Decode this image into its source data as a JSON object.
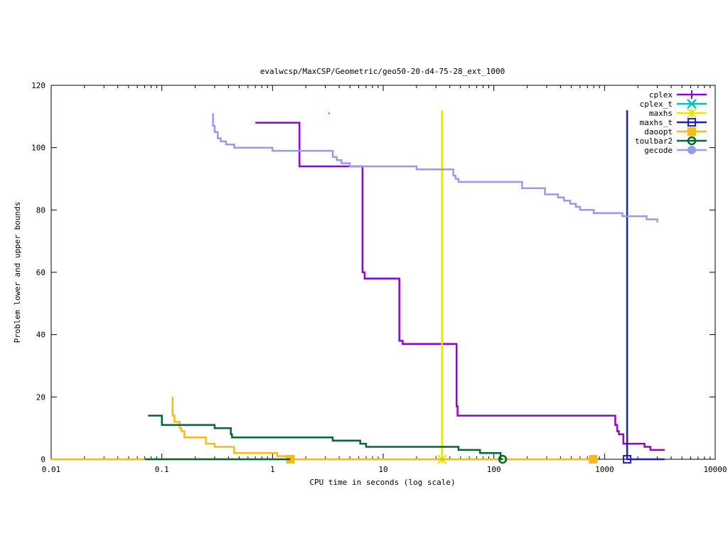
{
  "chart_data": {
    "type": "line",
    "title": "evalwcsp/MaxCSP/Geometric/geo50-20-d4-75-28_ext_1000",
    "xlabel": "CPU time in seconds (log scale)",
    "ylabel": "Problem lower and upper bounds",
    "xscale": "log",
    "xlim": [
      0.01,
      10000
    ],
    "ylim": [
      0,
      120
    ],
    "x_ticks": [
      {
        "value": 0.01,
        "label": "0.01"
      },
      {
        "value": 0.1,
        "label": "0.1"
      },
      {
        "value": 1,
        "label": "1"
      },
      {
        "value": 10,
        "label": "10"
      },
      {
        "value": 100,
        "label": "100"
      },
      {
        "value": 1000,
        "label": "1000"
      },
      {
        "value": 10000,
        "label": "10000"
      }
    ],
    "y_ticks": [
      {
        "value": 0,
        "label": "0"
      },
      {
        "value": 20,
        "label": "20"
      },
      {
        "value": 40,
        "label": "40"
      },
      {
        "value": 60,
        "label": "60"
      },
      {
        "value": 80,
        "label": "80"
      },
      {
        "value": 100,
        "label": "100"
      },
      {
        "value": 120,
        "label": "120"
      }
    ],
    "grid": false,
    "legend_position": "top-right",
    "series": [
      {
        "name": "cplex",
        "color": "#9400d3",
        "marker": "plus",
        "points": [
          [
            0.7,
            108
          ],
          [
            1.75,
            108
          ],
          [
            1.75,
            94
          ],
          [
            6.5,
            94
          ],
          [
            6.5,
            60
          ],
          [
            6.8,
            60
          ],
          [
            6.8,
            58
          ],
          [
            14,
            58
          ],
          [
            14,
            38
          ],
          [
            15,
            38
          ],
          [
            15,
            37
          ],
          [
            46,
            37
          ],
          [
            46,
            17
          ],
          [
            47,
            17
          ],
          [
            47,
            14
          ],
          [
            1250,
            14
          ],
          [
            1250,
            11
          ],
          [
            1300,
            11
          ],
          [
            1300,
            9
          ],
          [
            1350,
            9
          ],
          [
            1350,
            8
          ],
          [
            1480,
            8
          ],
          [
            1480,
            5
          ],
          [
            2300,
            5
          ],
          [
            2300,
            4
          ],
          [
            2600,
            4
          ],
          [
            2600,
            3
          ],
          [
            3500,
            3
          ]
        ],
        "marker_points": []
      },
      {
        "name": "cplex_t",
        "color": "#00c0c0",
        "marker": "cross",
        "points": [
          [
            3.2,
            111
          ],
          [
            3.3,
            111
          ]
        ],
        "marker_points": []
      },
      {
        "name": "maxhs",
        "color": "#e6e600",
        "marker": "star",
        "points": [
          [
            34,
            112
          ],
          [
            34,
            0
          ]
        ],
        "marker_points": [
          [
            34,
            0
          ]
        ]
      },
      {
        "name": "maxhs_t",
        "color": "#2020c0",
        "marker": "square",
        "points": [
          [
            1600,
            112
          ],
          [
            1600,
            0
          ],
          [
            3500,
            0
          ]
        ],
        "marker_points": [
          [
            1600,
            0
          ]
        ]
      },
      {
        "name": "daoopt",
        "color": "#f8b820",
        "marker": "filled-square",
        "points": [
          [
            0.01,
            0
          ],
          [
            790,
            0
          ]
        ],
        "marker_points": [
          [
            1.45,
            0
          ],
          [
            790,
            0
          ]
        ]
      },
      {
        "name": "daoopt",
        "color": "#f8b820",
        "marker": "none",
        "points": [
          [
            0.125,
            20
          ],
          [
            0.125,
            14
          ],
          [
            0.13,
            14
          ],
          [
            0.13,
            12
          ],
          [
            0.145,
            12
          ],
          [
            0.145,
            10
          ],
          [
            0.15,
            10
          ],
          [
            0.15,
            9
          ],
          [
            0.16,
            9
          ],
          [
            0.16,
            7
          ],
          [
            0.25,
            7
          ],
          [
            0.25,
            5
          ],
          [
            0.3,
            5
          ],
          [
            0.3,
            4
          ],
          [
            0.45,
            4
          ],
          [
            0.45,
            2
          ],
          [
            1.1,
            2
          ],
          [
            1.1,
            1
          ],
          [
            1.45,
            1
          ],
          [
            1.45,
            0
          ]
        ],
        "marker_points": []
      },
      {
        "name": "toulbar2",
        "color": "#006633",
        "marker": "circle",
        "points": [
          [
            0.075,
            14
          ],
          [
            0.1,
            14
          ],
          [
            0.1,
            11
          ],
          [
            0.3,
            11
          ],
          [
            0.3,
            10
          ],
          [
            0.42,
            10
          ],
          [
            0.42,
            8
          ],
          [
            0.43,
            8
          ],
          [
            0.43,
            7
          ],
          [
            3.5,
            7
          ],
          [
            3.5,
            6
          ],
          [
            6.2,
            6
          ],
          [
            6.2,
            5
          ],
          [
            7,
            5
          ],
          [
            7,
            4
          ],
          [
            48,
            4
          ],
          [
            48,
            3
          ],
          [
            75,
            3
          ],
          [
            75,
            2
          ],
          [
            115,
            2
          ],
          [
            115,
            0
          ],
          [
            120,
            0
          ]
        ],
        "marker_points": [
          [
            120,
            0
          ]
        ]
      },
      {
        "name": "toulbar2",
        "color": "#006633",
        "marker": "none",
        "points": [
          [
            0.07,
            0
          ],
          [
            1.45,
            0
          ]
        ],
        "marker_points": []
      },
      {
        "name": "gecode",
        "color": "#9999ee",
        "marker": "filled-circle",
        "points": [
          [
            0.29,
            111
          ],
          [
            0.29,
            107
          ],
          [
            0.3,
            107
          ],
          [
            0.3,
            105
          ],
          [
            0.32,
            105
          ],
          [
            0.32,
            103
          ],
          [
            0.34,
            103
          ],
          [
            0.34,
            102
          ],
          [
            0.38,
            102
          ],
          [
            0.38,
            101
          ],
          [
            0.45,
            101
          ],
          [
            0.45,
            100
          ],
          [
            1,
            100
          ],
          [
            1,
            99
          ],
          [
            3.5,
            99
          ],
          [
            3.5,
            97
          ],
          [
            3.8,
            97
          ],
          [
            3.8,
            96
          ],
          [
            4.2,
            96
          ],
          [
            4.2,
            95
          ],
          [
            5,
            95
          ],
          [
            5,
            94
          ],
          [
            20,
            94
          ],
          [
            20,
            93
          ],
          [
            43,
            93
          ],
          [
            43,
            91
          ],
          [
            45,
            91
          ],
          [
            45,
            90
          ],
          [
            48,
            90
          ],
          [
            48,
            89
          ],
          [
            180,
            89
          ],
          [
            180,
            87
          ],
          [
            290,
            87
          ],
          [
            290,
            85
          ],
          [
            380,
            85
          ],
          [
            380,
            84
          ],
          [
            430,
            84
          ],
          [
            430,
            83
          ],
          [
            490,
            83
          ],
          [
            490,
            82
          ],
          [
            550,
            82
          ],
          [
            550,
            81
          ],
          [
            600,
            81
          ],
          [
            600,
            80
          ],
          [
            800,
            80
          ],
          [
            800,
            79
          ],
          [
            1450,
            79
          ],
          [
            1450,
            78
          ],
          [
            2400,
            78
          ],
          [
            2400,
            77
          ],
          [
            3000,
            77
          ],
          [
            3000,
            76
          ]
        ],
        "marker_points": []
      }
    ]
  }
}
